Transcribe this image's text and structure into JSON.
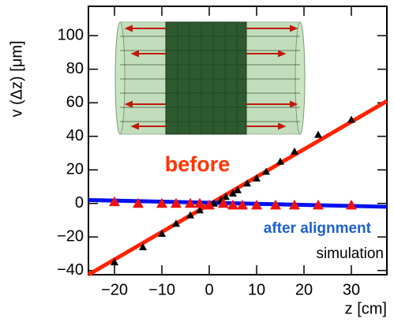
{
  "chart_data": {
    "type": "scatter",
    "ylabel": "v (Δz) [μm]",
    "xlabel": "z [cm]",
    "xlim": [
      -25.5,
      37.5
    ],
    "ylim": [
      -42.5,
      117.5
    ],
    "xticks": [
      {
        "value": -20,
        "label": "−20"
      },
      {
        "value": -10,
        "label": "−10"
      },
      0,
      10,
      20,
      30
    ],
    "yticks": [
      {
        "value": -40,
        "label": "−40"
      },
      {
        "value": -20,
        "label": "−20"
      },
      0,
      20,
      40,
      60,
      80,
      100
    ],
    "series": [
      {
        "name": "before",
        "color": "#000000",
        "label_color": "#ff3300",
        "x": [
          -20,
          -14,
          -10,
          -7,
          -4,
          -2,
          0,
          1,
          2.5,
          3.5,
          5,
          6,
          8,
          10,
          12,
          15,
          18,
          23,
          30
        ],
        "values": [
          -35,
          -26,
          -18,
          -12,
          -7,
          -4,
          -1,
          0,
          2,
          4,
          6,
          8,
          12,
          15,
          19,
          25,
          31,
          41,
          50
        ]
      },
      {
        "name": "after alignment",
        "color": "#ee1111",
        "label_color": "#1f5fd0",
        "x": [
          -20,
          -15,
          -10,
          -7,
          -4,
          -2,
          0,
          3,
          5,
          7,
          10,
          14,
          18,
          23,
          30
        ],
        "values": [
          1,
          0,
          0,
          0,
          0,
          0,
          -1,
          0,
          -1,
          -1,
          -1,
          -1,
          -1,
          -1,
          -1
        ]
      }
    ],
    "fits": [
      {
        "color": "#ff2200",
        "x": [
          -25.5,
          37.5
        ],
        "values": [
          -42.5,
          61
        ]
      },
      {
        "color": "#0011ee",
        "x": [
          -25.5,
          37.5
        ],
        "values": [
          2,
          -2
        ]
      }
    ],
    "note": "simulation"
  }
}
